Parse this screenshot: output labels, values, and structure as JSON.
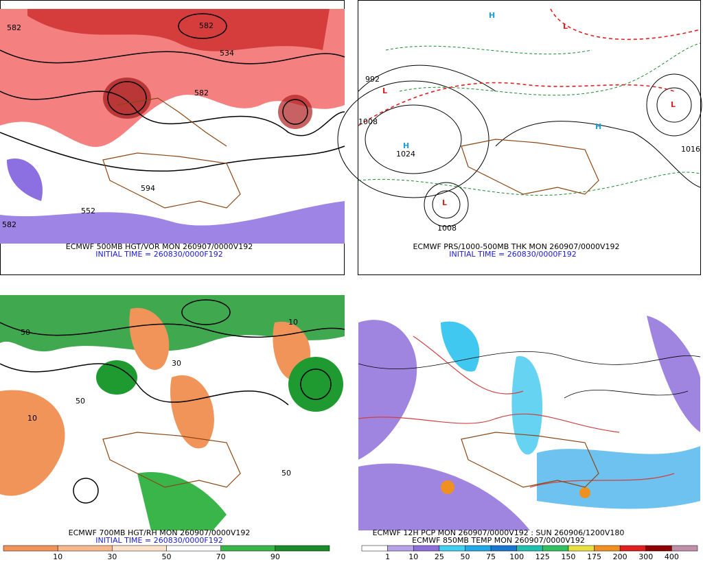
{
  "panels": [
    {
      "caption": "ECMWF 500MB HGT/VOR MON 260907/0000V192",
      "initial_time": "INITIAL TIME = 260830/0000F192",
      "labels": [
        "582",
        "534",
        "582",
        "582",
        "594",
        "582",
        "552"
      ]
    },
    {
      "caption": "ECMWF PRS/1000-500MB THK MON 260907/0000V192",
      "initial_time": "INITIAL TIME = 260830/0000F192",
      "labels": [
        "H",
        "L",
        "L",
        "H",
        "L",
        "L",
        "H",
        "1024",
        "1008",
        "1016",
        "1008",
        "992"
      ]
    },
    {
      "caption": "ECMWF 700MB HGT/RH MON 260907/0000V192",
      "initial_time": "INITIAL TIME = 260830/0000F192",
      "labels": [
        "50",
        "10",
        "50",
        "30",
        "10",
        "50"
      ],
      "colorbar": {
        "labels": [
          10,
          30,
          50,
          70,
          90
        ],
        "colors": [
          "#f0945a",
          "#f7b98c",
          "#fde3cc",
          "#ffffff",
          "#39b54a",
          "#1a8a2a"
        ]
      }
    },
    {
      "caption": "ECMWF 12H PCP MON 260907/0000V192 : SUN 260906/1200V180",
      "initial_time": "ECMWF 850MB TEMP MON 260907/0000V192",
      "colorbar": {
        "labels": [
          1,
          10,
          25,
          50,
          75,
          100,
          125,
          150,
          175,
          200,
          300,
          400
        ],
        "colors": [
          "#ffffff",
          "#b9a3e8",
          "#8e6fd8",
          "#40d0f0",
          "#20a8e8",
          "#1878d0",
          "#20c0b0",
          "#30c060",
          "#e8e040",
          "#f09020",
          "#e02020",
          "#900000",
          "#c090a8"
        ]
      }
    }
  ]
}
